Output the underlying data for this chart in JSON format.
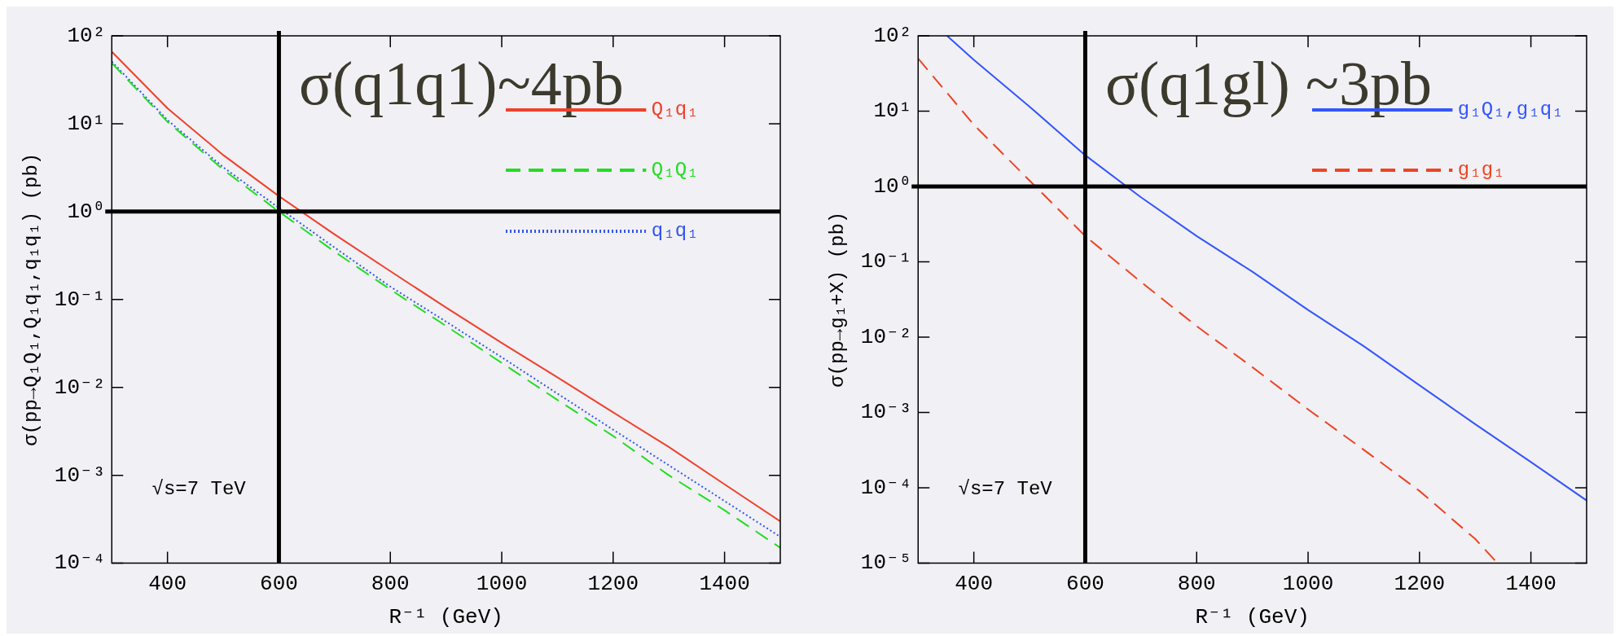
{
  "chart_data": [
    {
      "type": "line",
      "xlabel": "R⁻¹ (GeV)",
      "ylabel": "σ(pp→Q₁Q₁,Q₁q₁,q₁q₁) (pb)",
      "log": "y",
      "xlim": [
        300,
        1500
      ],
      "xticks": [
        400,
        600,
        800,
        1000,
        1200,
        1400
      ],
      "ylim": [
        0.0001,
        100
      ],
      "yticks": [
        {
          "value": 0.0001,
          "label": "10⁻⁴"
        },
        {
          "value": 0.001,
          "label": "10⁻³"
        },
        {
          "value": 0.01,
          "label": "10⁻²"
        },
        {
          "value": 0.1,
          "label": "10⁻¹"
        },
        {
          "value": 1,
          "label": "10⁰"
        },
        {
          "value": 10,
          "label": "10¹"
        },
        {
          "value": 100,
          "label": "10²"
        }
      ],
      "legend": "top right",
      "marker": "none",
      "annotations": [
        "σ(q1q1)~4pb",
        "√s=7 TeV"
      ],
      "ref_lines": [
        {
          "axis": "x",
          "value": 600,
          "color": "#000000"
        },
        {
          "axis": "y",
          "value": 1,
          "color": "#000000"
        }
      ],
      "series": [
        {
          "name": "Q₁q₁",
          "color": "#f0402a",
          "line_style": "solid",
          "x": [
            300,
            400,
            500,
            600,
            700,
            800,
            900,
            1000,
            1100,
            1200,
            1300,
            1400,
            1500
          ],
          "values": [
            66,
            15,
            4.4,
            1.5,
            0.55,
            0.21,
            0.081,
            0.032,
            0.013,
            0.0052,
            0.0021,
            0.00079,
            0.0003
          ]
        },
        {
          "name": "Q₁Q₁",
          "color": "#22dd22",
          "line_style": "dashed",
          "x": [
            300,
            400,
            500,
            600,
            700,
            800,
            900,
            1000,
            1100,
            1200,
            1300,
            1400,
            1500
          ],
          "values": [
            49,
            10.5,
            3.0,
            1.0,
            0.35,
            0.13,
            0.05,
            0.019,
            0.0072,
            0.0028,
            0.001,
            0.0004,
            0.00015
          ]
        },
        {
          "name": "q₁q₁",
          "color": "#3355ee",
          "line_style": "dotted",
          "x": [
            300,
            400,
            500,
            600,
            700,
            800,
            900,
            1000,
            1100,
            1200,
            1300,
            1400,
            1500
          ],
          "values": [
            51,
            11,
            3.2,
            1.1,
            0.39,
            0.14,
            0.056,
            0.022,
            0.0085,
            0.0033,
            0.0013,
            0.00051,
            0.0002
          ]
        }
      ]
    },
    {
      "type": "line",
      "xlabel": "R⁻¹ (GeV)",
      "ylabel": "σ(pp→g₁+X) (pb)",
      "log": "y",
      "xlim": [
        300,
        1500
      ],
      "xticks": [
        400,
        600,
        800,
        1000,
        1200,
        1400
      ],
      "ylim": [
        1e-05,
        100
      ],
      "yticks": [
        {
          "value": 1e-05,
          "label": "10⁻⁵"
        },
        {
          "value": 0.0001,
          "label": "10⁻⁴"
        },
        {
          "value": 0.001,
          "label": "10⁻³"
        },
        {
          "value": 0.01,
          "label": "10⁻²"
        },
        {
          "value": 0.1,
          "label": "10⁻¹"
        },
        {
          "value": 1,
          "label": "10⁰"
        },
        {
          "value": 10,
          "label": "10¹"
        },
        {
          "value": 100,
          "label": "10²"
        }
      ],
      "legend": "top right",
      "marker": "none",
      "annotations": [
        "σ(q1gl) ~3pb",
        "√s=7 TeV"
      ],
      "ref_lines": [
        {
          "axis": "x",
          "value": 600,
          "color": "#000000"
        },
        {
          "axis": "y",
          "value": 1,
          "color": "#000000"
        }
      ],
      "series": [
        {
          "name": "g₁Q₁,g₁q₁",
          "color": "#3355ff",
          "line_style": "solid",
          "x": [
            352,
            400,
            500,
            600,
            700,
            800,
            900,
            1000,
            1100,
            1200,
            1300,
            1400,
            1500
          ],
          "values": [
            100,
            48,
            11.5,
            2.6,
            0.72,
            0.22,
            0.074,
            0.023,
            0.0076,
            0.0023,
            0.0007,
            0.00022,
            6.8e-05
          ]
        },
        {
          "name": "g₁g₁",
          "color": "#ee4422",
          "line_style": "dashed",
          "x": [
            300,
            400,
            500,
            600,
            700,
            800,
            900,
            1000,
            1100,
            1200,
            1300,
            1340
          ],
          "values": [
            50,
            6.6,
            1.2,
            0.22,
            0.054,
            0.014,
            0.004,
            0.0011,
            0.00032,
            9.1e-05,
            2.1e-05,
            1e-05
          ]
        }
      ]
    }
  ]
}
